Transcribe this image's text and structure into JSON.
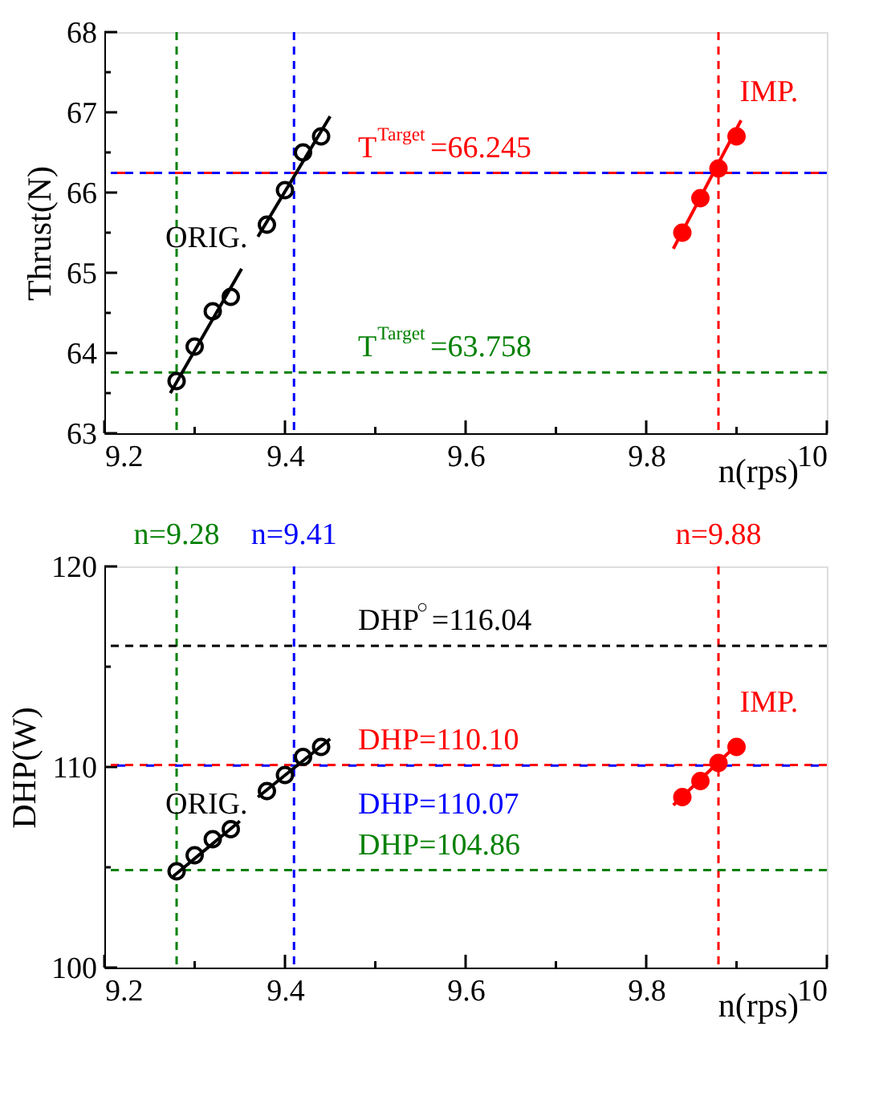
{
  "chart_data": [
    {
      "type": "scatter",
      "ylabel": "Thrust(N)",
      "xlabel": "n(rps)",
      "xlim": [
        9.2,
        10
      ],
      "ylim": [
        63,
        68
      ],
      "xticks": [
        9.2,
        {
          "value": 9.3,
          "label": null
        },
        9.4,
        {
          "value": 9.5,
          "label": null
        },
        9.6,
        {
          "value": 9.7,
          "label": null
        },
        9.8,
        {
          "value": 9.9,
          "label": null
        },
        10
      ],
      "yticks": [
        63,
        {
          "value": 63.5,
          "label": null
        },
        64,
        {
          "value": 64.5,
          "label": null
        },
        65,
        {
          "value": 65.5,
          "label": null
        },
        66,
        {
          "value": 66.5,
          "label": null
        },
        67,
        {
          "value": 67.5,
          "label": null
        },
        68
      ],
      "grid": false,
      "legend": false,
      "marker": "circle",
      "series": [
        {
          "name": "ORIG.",
          "type": "scatter",
          "color": "#000000",
          "x": [
            9.28,
            9.3,
            9.32,
            9.34,
            9.38,
            9.4,
            9.42,
            9.44
          ],
          "values": [
            63.65,
            64.08,
            64.52,
            64.7,
            65.6,
            66.03,
            66.5,
            66.7
          ]
        },
        {
          "type": "line",
          "marker": "none",
          "color": "#000000",
          "line_style": "solid",
          "x": [
            9.273,
            9.352
          ],
          "values": [
            63.5,
            65.05
          ]
        },
        {
          "type": "line",
          "marker": "none",
          "color": "#000000",
          "line_style": "solid",
          "x": [
            9.37,
            9.45
          ],
          "values": [
            65.45,
            66.95
          ]
        },
        {
          "name": "IMP.",
          "type": "scatter",
          "color": "#ff0000",
          "x": [
            9.84,
            9.86,
            9.88,
            9.9
          ],
          "values": [
            65.5,
            65.93,
            66.3,
            66.7
          ]
        },
        {
          "type": "line",
          "marker": "none",
          "color": "#ff0000",
          "line_style": "solid",
          "x": [
            9.83,
            9.905
          ],
          "values": [
            65.3,
            66.9
          ]
        }
      ],
      "ref_lines": [
        {
          "axis": "x",
          "value": 9.28,
          "color": "#008000",
          "line_style": "dashed"
        },
        {
          "axis": "x",
          "value": 9.41,
          "color": "#0000ff",
          "line_style": "dashed"
        },
        {
          "axis": "x",
          "value": 9.88,
          "color": "#ff0000",
          "line_style": "dashed"
        },
        {
          "axis": "y",
          "value": 66.245,
          "color": "#0000ff",
          "line_style": "dashed"
        },
        {
          "axis": "y",
          "value": 66.245,
          "color": "#ff0000",
          "line_style": "dashed",
          "label": "T$^{Target}$=66.245"
        },
        {
          "axis": "y",
          "value": 63.758,
          "color": "#008000",
          "line_style": "dashed",
          "label": "T$^{Target}$=63.758"
        }
      ]
    },
    {
      "type": "scatter",
      "ylabel": "DHP(W)",
      "xlabel": "n(rps)",
      "xlim": [
        9.2,
        10
      ],
      "ylim": [
        100,
        120
      ],
      "xticks": [
        9.2,
        {
          "value": 9.3,
          "label": null
        },
        9.4,
        {
          "value": 9.5,
          "label": null
        },
        9.6,
        {
          "value": 9.7,
          "label": null
        },
        9.8,
        {
          "value": 9.9,
          "label": null
        },
        10
      ],
      "yticks": [
        100,
        {
          "value": 105,
          "label": null
        },
        110,
        {
          "value": 115,
          "label": null
        },
        120
      ],
      "grid": false,
      "legend": false,
      "marker": "circle",
      "series": [
        {
          "name": "ORIG.",
          "type": "scatter",
          "color": "#000000",
          "x": [
            9.28,
            9.3,
            9.32,
            9.34,
            9.38,
            9.4,
            9.42,
            9.44
          ],
          "values": [
            104.8,
            105.6,
            106.4,
            106.9,
            108.8,
            109.6,
            110.5,
            111.0
          ]
        },
        {
          "type": "line",
          "marker": "none",
          "color": "#000000",
          "line_style": "solid",
          "x": [
            9.275,
            9.35
          ],
          "values": [
            104.5,
            107.3
          ]
        },
        {
          "type": "line",
          "marker": "none",
          "color": "#000000",
          "line_style": "solid",
          "x": [
            9.37,
            9.45
          ],
          "values": [
            108.5,
            111.4
          ]
        },
        {
          "name": "IMP.",
          "type": "scatter",
          "color": "#ff0000",
          "x": [
            9.84,
            9.86,
            9.88,
            9.9
          ],
          "values": [
            108.5,
            109.3,
            110.2,
            111.0
          ]
        },
        {
          "type": "line",
          "marker": "none",
          "color": "#ff0000",
          "line_style": "solid",
          "x": [
            9.83,
            9.905
          ],
          "values": [
            108.1,
            111.3
          ]
        }
      ],
      "ref_lines": [
        {
          "axis": "x",
          "value": 9.28,
          "color": "#008000",
          "line_style": "dashed",
          "label": "n=9.28"
        },
        {
          "axis": "x",
          "value": 9.41,
          "color": "#0000ff",
          "line_style": "dashed",
          "label": "n=9.41"
        },
        {
          "axis": "x",
          "value": 9.88,
          "color": "#ff0000",
          "line_style": "dashed",
          "label": "n=9.88"
        },
        {
          "axis": "y",
          "value": 116.04,
          "color": "#000000",
          "line_style": "dashed",
          "label": "DHP$^{○}$=116.04"
        },
        {
          "axis": "y",
          "value": 110.1,
          "color": "#ff0000",
          "line_style": "dashed",
          "label": "DHP=110.10"
        },
        {
          "axis": "y",
          "value": 110.07,
          "color": "#0000ff",
          "line_style": "dashed",
          "label": "DHP=110.07"
        },
        {
          "axis": "y",
          "value": 104.86,
          "color": "#008000",
          "line_style": "dashed",
          "label": "DHP=104.86"
        }
      ]
    }
  ]
}
